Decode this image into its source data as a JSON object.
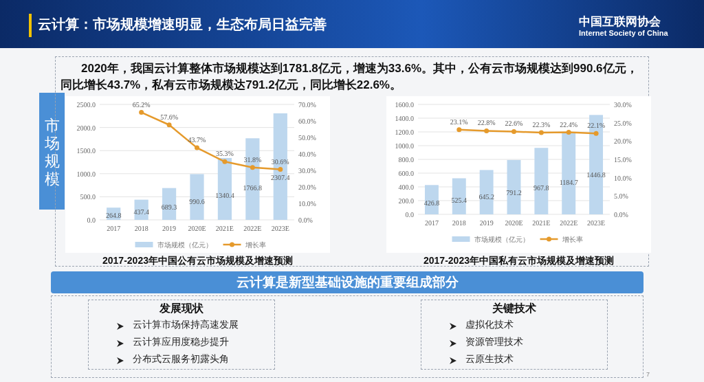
{
  "chart_data": [
    {
      "type": "other",
      "title": "云计算：市场规模增速明显，生态布局日益完善",
      "annotations": [
        "2020年，我国云计算整体市场规模达到1781.8亿元，增速为33.6%。其中，公有云市场规模达到990.6亿元，同比增长43.7%，私有云市场规模达791.2亿元，同比增长22.6%。",
        "市场规模",
        "中国互联网协会",
        "Internet Society of China"
      ]
    },
    {
      "type": "bar",
      "title": "2017-2023年中国公有云市场规模及增速预测",
      "categories": [
        "2017",
        "2018",
        "2019",
        "2020E",
        "2021E",
        "2022E",
        "2023E"
      ],
      "series": [
        {
          "name": "市场规模（亿元）",
          "color": "#bdd7ee",
          "values": [
            264.8,
            437.4,
            689.3,
            990.6,
            1340.4,
            1766.8,
            2307.4
          ],
          "value_labels": [
            "264.8",
            "437.4",
            "689.3",
            "990.6",
            "1340.4",
            "1766.8",
            "2307.4"
          ]
        },
        {
          "name": "增长率",
          "type": "line",
          "axis": "y2",
          "color": "#e59a2c",
          "values": [
            null,
            65.2,
            57.6,
            43.7,
            35.3,
            31.8,
            30.6
          ],
          "value_labels": [
            null,
            "65.2%",
            "57.6%",
            "43.7%",
            "35.3%",
            "31.8%",
            "30.6%"
          ]
        }
      ],
      "ylim": [
        0,
        2500
      ],
      "yticks": [
        {
          "value": 0,
          "label": "0.0"
        },
        {
          "value": 500,
          "label": "500.0"
        },
        {
          "value": 1000,
          "label": "1000.0"
        },
        {
          "value": 1500,
          "label": "1500.0"
        },
        {
          "value": 2000,
          "label": "2000.0"
        },
        {
          "value": 2500,
          "label": "2500.0"
        }
      ],
      "y2lim": [
        0,
        70
      ],
      "y2ticks": [
        {
          "value": 0,
          "label": "0.0%"
        },
        {
          "value": 10,
          "label": "10.0%"
        },
        {
          "value": 20,
          "label": "20.0%"
        },
        {
          "value": 30,
          "label": "30.0%"
        },
        {
          "value": 40,
          "label": "40.0%"
        },
        {
          "value": 50,
          "label": "50.0%"
        },
        {
          "value": 60,
          "label": "60.0%"
        },
        {
          "value": 70,
          "label": "70.0%"
        }
      ],
      "grid": "y",
      "legend": "bottom",
      "marker": "circle"
    },
    {
      "type": "bar",
      "title": "2017-2023年中国私有云市场规模及增速预测",
      "categories": [
        "2017",
        "2018",
        "2019",
        "2020E",
        "2021E",
        "2022E",
        "2023E"
      ],
      "series": [
        {
          "name": "市场规模（亿元）",
          "color": "#bdd7ee",
          "values": [
            426.8,
            525.4,
            645.2,
            791.2,
            967.8,
            1184.7,
            1446.8
          ],
          "value_labels": [
            "426.8",
            "525.4",
            "645.2",
            "791.2",
            "967.8",
            "1184.7",
            "1446.8"
          ]
        },
        {
          "name": "增长率",
          "type": "line",
          "axis": "y2",
          "color": "#e59a2c",
          "values": [
            null,
            23.1,
            22.8,
            22.6,
            22.3,
            22.4,
            22.1
          ],
          "value_labels": [
            null,
            "23.1%",
            "22.8%",
            "22.6%",
            "22.3%",
            "22.4%",
            "22.1%"
          ]
        }
      ],
      "ylim": [
        0,
        1600
      ],
      "yticks": [
        {
          "value": 0,
          "label": "0.0"
        },
        {
          "value": 200,
          "label": "200.0"
        },
        {
          "value": 400,
          "label": "400.0"
        },
        {
          "value": 600,
          "label": "600.0"
        },
        {
          "value": 800,
          "label": "800.0"
        },
        {
          "value": 1000,
          "label": "1000.0"
        },
        {
          "value": 1200,
          "label": "1200.0"
        },
        {
          "value": 1400,
          "label": "1400.0"
        },
        {
          "value": 1600,
          "label": "1600.0"
        }
      ],
      "y2lim": [
        0,
        30
      ],
      "y2ticks": [
        {
          "value": 0,
          "label": "0.0%"
        },
        {
          "value": 5,
          "label": "5.0%"
        },
        {
          "value": 10,
          "label": "10.0%"
        },
        {
          "value": 15,
          "label": "15.0%"
        },
        {
          "value": 20,
          "label": "20.0%"
        },
        {
          "value": 25,
          "label": "25.0%"
        },
        {
          "value": 30,
          "label": "30.0%"
        }
      ],
      "grid": "y",
      "legend": "bottom",
      "marker": "circle"
    },
    {
      "type": "other",
      "title": "云计算是新型基础设施的重要组成部分",
      "annotations": [
        "发展现状",
        "云计算市场保持高速发展",
        "云计算应用度稳步提升",
        "分布式云服务初露头角",
        "关键技术",
        "虚拟化技术",
        "资源管理技术",
        "云原生技术",
        "7"
      ]
    }
  ]
}
